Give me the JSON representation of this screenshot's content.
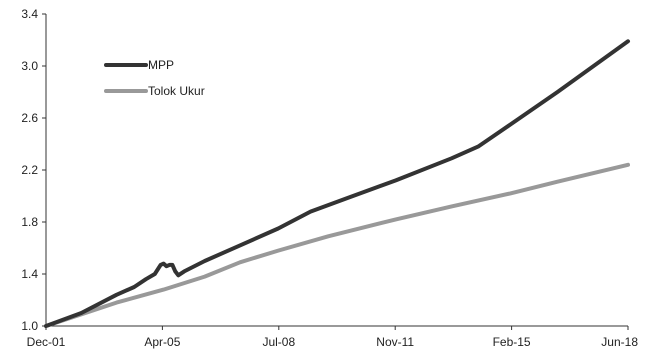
{
  "chart_data": {
    "type": "line",
    "title": "",
    "xlabel": "",
    "ylabel": "",
    "x_ticks": [
      "Dec-01",
      "Apr-05",
      "Jul-08",
      "Nov-11",
      "Feb-15",
      "Jun-18"
    ],
    "y_ticks": [
      "1.0",
      "1.4",
      "1.8",
      "2.2",
      "2.6",
      "3.0",
      "3.4"
    ],
    "ylim": [
      1.0,
      3.4
    ],
    "xlim": [
      "2001-12",
      "2018-06"
    ],
    "grid": false,
    "legend_position": "top-left",
    "series": [
      {
        "name": "MPP",
        "color": "#333333",
        "points": [
          [
            "2001-12",
            1.0
          ],
          [
            "2002-12",
            1.1
          ],
          [
            "2003-12",
            1.24
          ],
          [
            "2004-06",
            1.3
          ],
          [
            "2004-10",
            1.36
          ],
          [
            "2005-01",
            1.4
          ],
          [
            "2005-03",
            1.47
          ],
          [
            "2005-04",
            1.48
          ],
          [
            "2005-05",
            1.46
          ],
          [
            "2005-06",
            1.47
          ],
          [
            "2005-07",
            1.47
          ],
          [
            "2005-08",
            1.42
          ],
          [
            "2005-09",
            1.39
          ],
          [
            "2005-11",
            1.42
          ],
          [
            "2006-06",
            1.5
          ],
          [
            "2007-06",
            1.62
          ],
          [
            "2008-07",
            1.75
          ],
          [
            "2009-06",
            1.88
          ],
          [
            "2010-06",
            1.98
          ],
          [
            "2011-11",
            2.12
          ],
          [
            "2013-06",
            2.29
          ],
          [
            "2014-03",
            2.38
          ],
          [
            "2015-02",
            2.55
          ],
          [
            "2016-06",
            2.8
          ],
          [
            "2018-06",
            3.19
          ]
        ]
      },
      {
        "name": "Tolok Ukur",
        "color": "#999999",
        "points": [
          [
            "2001-12",
            1.0
          ],
          [
            "2002-12",
            1.09
          ],
          [
            "2003-12",
            1.18
          ],
          [
            "2005-04",
            1.28
          ],
          [
            "2006-06",
            1.38
          ],
          [
            "2007-06",
            1.49
          ],
          [
            "2008-07",
            1.58
          ],
          [
            "2009-12",
            1.69
          ],
          [
            "2011-11",
            1.82
          ],
          [
            "2013-06",
            1.92
          ],
          [
            "2015-02",
            2.02
          ],
          [
            "2016-06",
            2.11
          ],
          [
            "2018-06",
            2.24
          ]
        ]
      }
    ]
  }
}
